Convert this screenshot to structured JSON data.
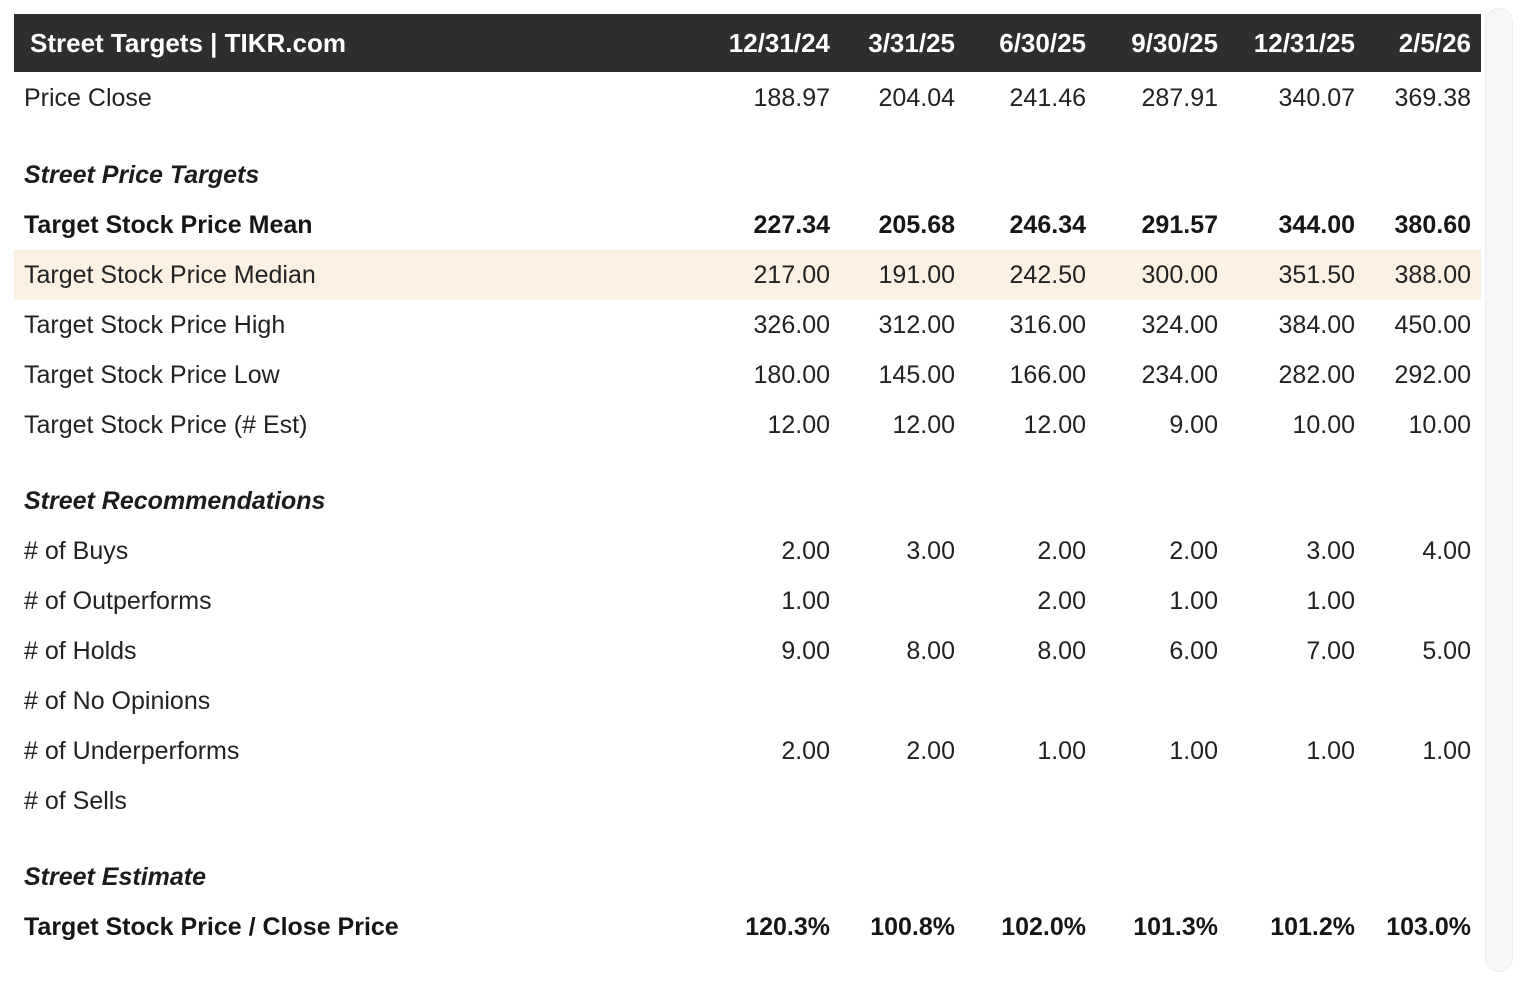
{
  "title": "Street Targets | TIKR.com",
  "columns": [
    "12/31/24",
    "3/31/25",
    "6/30/25",
    "9/30/25",
    "12/31/25",
    "2/5/26"
  ],
  "colors": {
    "header_bg": "#2e2e2e",
    "header_text": "#ffffff",
    "highlight_bg": "#faf1e2"
  },
  "rows": [
    {
      "type": "data",
      "style": "normal first",
      "label": "Price Close",
      "values": [
        "188.97",
        "204.04",
        "241.46",
        "287.91",
        "340.07",
        "369.38"
      ]
    },
    {
      "type": "section",
      "label": "Street Price Targets"
    },
    {
      "type": "data",
      "style": "bold",
      "label": "Target Stock Price Mean",
      "values": [
        "227.34",
        "205.68",
        "246.34",
        "291.57",
        "344.00",
        "380.60"
      ]
    },
    {
      "type": "data",
      "style": "highlight",
      "label": "Target Stock Price Median",
      "values": [
        "217.00",
        "191.00",
        "242.50",
        "300.00",
        "351.50",
        "388.00"
      ]
    },
    {
      "type": "data",
      "style": "normal",
      "label": "Target Stock Price High",
      "values": [
        "326.00",
        "312.00",
        "316.00",
        "324.00",
        "384.00",
        "450.00"
      ]
    },
    {
      "type": "data",
      "style": "normal",
      "label": "Target Stock Price Low",
      "values": [
        "180.00",
        "145.00",
        "166.00",
        "234.00",
        "282.00",
        "292.00"
      ]
    },
    {
      "type": "data",
      "style": "normal",
      "label": "Target Stock Price (# Est)",
      "values": [
        "12.00",
        "12.00",
        "12.00",
        "9.00",
        "10.00",
        "10.00"
      ]
    },
    {
      "type": "section",
      "label": "Street Recommendations"
    },
    {
      "type": "data",
      "style": "normal",
      "label": "# of Buys",
      "values": [
        "2.00",
        "3.00",
        "2.00",
        "2.00",
        "3.00",
        "4.00"
      ]
    },
    {
      "type": "data",
      "style": "normal",
      "label": "# of Outperforms",
      "values": [
        "1.00",
        "",
        "2.00",
        "1.00",
        "1.00",
        ""
      ]
    },
    {
      "type": "data",
      "style": "normal",
      "label": "# of Holds",
      "values": [
        "9.00",
        "8.00",
        "8.00",
        "6.00",
        "7.00",
        "5.00"
      ]
    },
    {
      "type": "data",
      "style": "normal",
      "label": "# of No Opinions",
      "values": [
        "",
        "",
        "",
        "",
        "",
        ""
      ]
    },
    {
      "type": "data",
      "style": "normal",
      "label": "# of Underperforms",
      "values": [
        "2.00",
        "2.00",
        "1.00",
        "1.00",
        "1.00",
        "1.00"
      ]
    },
    {
      "type": "data",
      "style": "normal",
      "label": "# of Sells",
      "values": [
        "",
        "",
        "",
        "",
        "",
        ""
      ]
    },
    {
      "type": "section",
      "label": "Street Estimate"
    },
    {
      "type": "data",
      "style": "bold",
      "label": "Target Stock Price / Close Price",
      "values": [
        "120.3%",
        "100.8%",
        "102.0%",
        "101.3%",
        "101.2%",
        "103.0%"
      ]
    }
  ]
}
